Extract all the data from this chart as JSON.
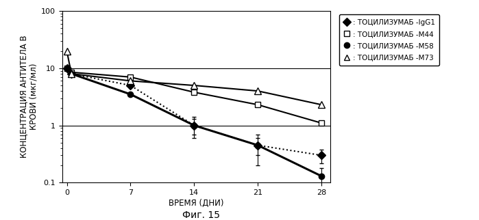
{
  "x_ticks": [
    0,
    7,
    14,
    21,
    28
  ],
  "xlim": [
    -0.5,
    29
  ],
  "ylim": [
    0.1,
    100
  ],
  "xlabel": "ВРЕМЯ (ДНИ)",
  "ylabel": "КОНЦЕНТРАЦИЯ АНТИТЕЛА В\nКРОВИ (мкг/мл)",
  "caption": "Фиг. 15",
  "series": {
    "IgG1": {
      "x": [
        0,
        0.5,
        7,
        14,
        21,
        28
      ],
      "y": [
        10.0,
        8.0,
        5.0,
        1.0,
        0.45,
        0.3
      ],
      "yerr_lo": [
        0,
        0,
        0,
        0.3,
        0.15,
        0.08
      ],
      "yerr_hi": [
        0,
        0,
        0,
        0.3,
        0.15,
        0.08
      ],
      "linestyle": "dotted",
      "marker": "D",
      "fillstyle": "full",
      "markersize": 6,
      "linewidth": 1.5,
      "label": ": ТОЦИЛИЗУМАБ -IgG1"
    },
    "M44": {
      "x": [
        0,
        0.5,
        7,
        14,
        21,
        28
      ],
      "y": [
        10.0,
        8.5,
        7.0,
        3.8,
        2.3,
        1.1
      ],
      "yerr_lo": [
        0,
        0,
        0,
        0,
        0,
        0
      ],
      "yerr_hi": [
        0,
        0,
        0,
        0,
        0,
        0
      ],
      "linestyle": "solid",
      "marker": "s",
      "fillstyle": "none",
      "markersize": 6,
      "linewidth": 1.5,
      "label": ": ТОЦИЛИЗУМАБ -М44"
    },
    "M58": {
      "x": [
        0,
        0.5,
        7,
        14,
        21,
        28
      ],
      "y": [
        10.0,
        8.0,
        3.5,
        1.0,
        0.45,
        0.13
      ],
      "yerr_lo": [
        0,
        0,
        0,
        0.4,
        0.25,
        0.05
      ],
      "yerr_hi": [
        0,
        0,
        0,
        0.4,
        0.25,
        0.05
      ],
      "linestyle": "solid",
      "marker": "o",
      "fillstyle": "full",
      "markersize": 6,
      "linewidth": 2.2,
      "label": ": ТОЦИЛИЗУМАБ -М58"
    },
    "M73": {
      "x": [
        0,
        0.5,
        7,
        14,
        21,
        28
      ],
      "y": [
        20.0,
        8.0,
        6.0,
        5.0,
        4.0,
        2.3
      ],
      "yerr_lo": [
        0,
        0,
        0,
        0,
        0,
        0
      ],
      "yerr_hi": [
        0,
        0,
        0,
        0,
        0,
        0
      ],
      "linestyle": "solid",
      "marker": "^",
      "fillstyle": "none",
      "markersize": 7,
      "linewidth": 1.5,
      "label": ": ТОЦИЛИЗУМАБ -М73"
    }
  },
  "background_color": "#ffffff",
  "legend_fontsize": 7.5,
  "axis_fontsize": 8,
  "label_fontsize": 8.5,
  "caption_fontsize": 10
}
